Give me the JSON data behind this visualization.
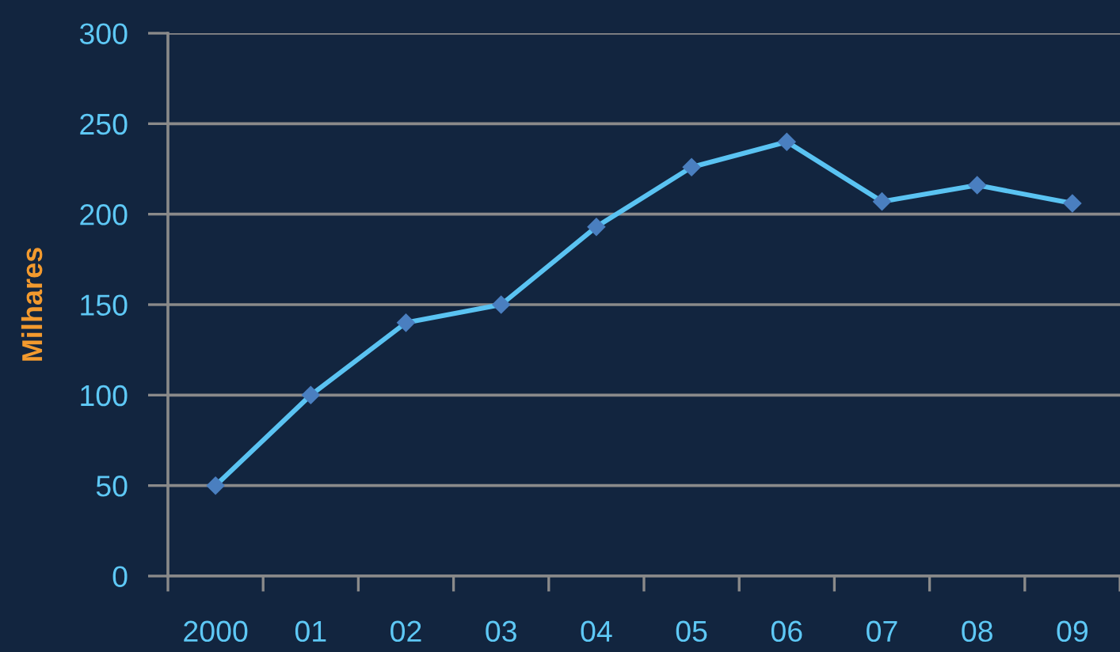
{
  "chart_data": {
    "type": "line",
    "ylabel": "Milhares",
    "categories": [
      "2000",
      "01",
      "02",
      "03",
      "04",
      "05",
      "06",
      "07",
      "08",
      "09"
    ],
    "series": [
      {
        "color": "#5ac3f2",
        "colors": [
          "#4a7fc0",
          "#4a7fc0",
          "#4a7fc0",
          "#4a7fc0",
          "#4a7fc0",
          "#4a7fc0",
          "#4a7fc0",
          "#4a7fc0",
          "#4a7fc0",
          "#4a7fc0"
        ],
        "values": [
          50,
          100,
          140,
          150,
          193,
          226,
          240,
          207,
          216,
          206
        ]
      }
    ],
    "ylim": [
      0,
      300
    ],
    "yticks": [
      0,
      50,
      100,
      150,
      200,
      250,
      300
    ],
    "grid": "y",
    "marker": "diamond",
    "line_style": "solid"
  }
}
